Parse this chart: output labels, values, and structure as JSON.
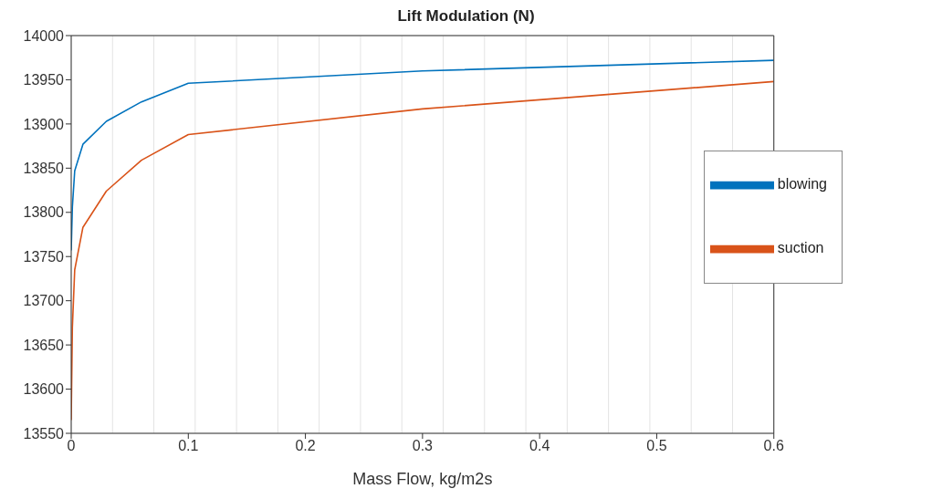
{
  "chart_data": {
    "type": "line",
    "title": "Lift Modulation (N)",
    "xlabel": "Mass Flow, kg/m2s",
    "xlim": [
      0,
      0.6
    ],
    "xticks": [
      0,
      0.1,
      0.2,
      0.3,
      0.4,
      0.5,
      0.6
    ],
    "ylim": [
      13550,
      14000
    ],
    "yticks": [
      13550,
      13600,
      13650,
      13700,
      13750,
      13800,
      13850,
      13900,
      13950,
      14000
    ],
    "grid": true,
    "legend": "right",
    "marker": "none",
    "line_style": "solid",
    "series": [
      {
        "name": "blowing",
        "color": "#0072bd",
        "x": [
          0,
          0.001,
          0.003,
          0.01,
          0.03,
          0.06,
          0.1,
          0.3,
          0.6
        ],
        "values": [
          13757,
          13806,
          13847,
          13877,
          13903,
          13925,
          13946,
          13960,
          13972
        ]
      },
      {
        "name": "suction",
        "color": "#d95319",
        "x": [
          0,
          0.001,
          0.003,
          0.01,
          0.03,
          0.06,
          0.1,
          0.3,
          0.6
        ],
        "values": [
          13565,
          13670,
          13735,
          13783,
          13824,
          13859,
          13888,
          13917,
          13948
        ]
      }
    ]
  }
}
